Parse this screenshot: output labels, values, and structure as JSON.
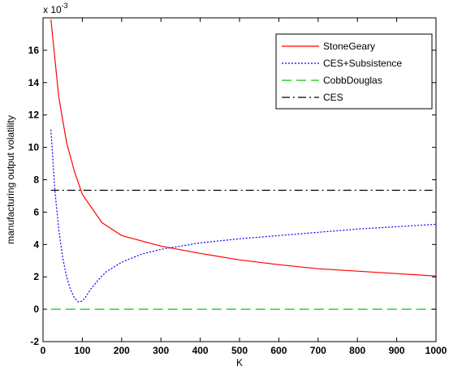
{
  "chart_data": {
    "type": "line",
    "xlabel": "K",
    "ylabel": "manufacturing output volatility",
    "exponent": {
      "base": "x 10",
      "power": "-3"
    },
    "xlim": [
      0,
      1000
    ],
    "ylim": [
      -2,
      18
    ],
    "xticks": [
      0,
      100,
      200,
      300,
      400,
      500,
      600,
      700,
      800,
      900,
      1000
    ],
    "yticks": [
      -2,
      0,
      2,
      4,
      6,
      8,
      10,
      12,
      14,
      16
    ],
    "grid": false,
    "legend_position": "top-right",
    "series": [
      {
        "name": "StoneGeary",
        "color": "#ff0000",
        "dash": "solid",
        "x": [
          20,
          40,
          60,
          80,
          100,
          150,
          200,
          300,
          400,
          500,
          600,
          700,
          800,
          900,
          1000
        ],
        "y": [
          17.9,
          13.1,
          10.3,
          8.5,
          7.1,
          5.35,
          4.55,
          3.9,
          3.45,
          3.05,
          2.75,
          2.5,
          2.35,
          2.2,
          2.05
        ]
      },
      {
        "name": "CES+Subsistence",
        "color": "#0000ff",
        "dash": "dotted",
        "x": [
          20,
          30,
          40,
          50,
          60,
          70,
          80,
          90,
          100,
          110,
          120,
          140,
          160,
          200,
          250,
          300,
          350,
          400,
          500,
          600,
          700,
          800,
          900,
          1000
        ],
        "y": [
          11.1,
          7.4,
          4.9,
          3.2,
          2.0,
          1.2,
          0.7,
          0.45,
          0.5,
          0.8,
          1.2,
          1.8,
          2.3,
          2.9,
          3.4,
          3.7,
          3.9,
          4.1,
          4.35,
          4.55,
          4.75,
          4.95,
          5.1,
          5.25
        ]
      },
      {
        "name": "CobbDouglas",
        "color": "#00cc00",
        "dash": "dashed",
        "x": [
          20,
          1000
        ],
        "y": [
          0,
          0
        ]
      },
      {
        "name": "CES",
        "color": "#000000",
        "dash": "dashdot",
        "x": [
          20,
          1000
        ],
        "y": [
          7.35,
          7.35
        ]
      }
    ]
  }
}
